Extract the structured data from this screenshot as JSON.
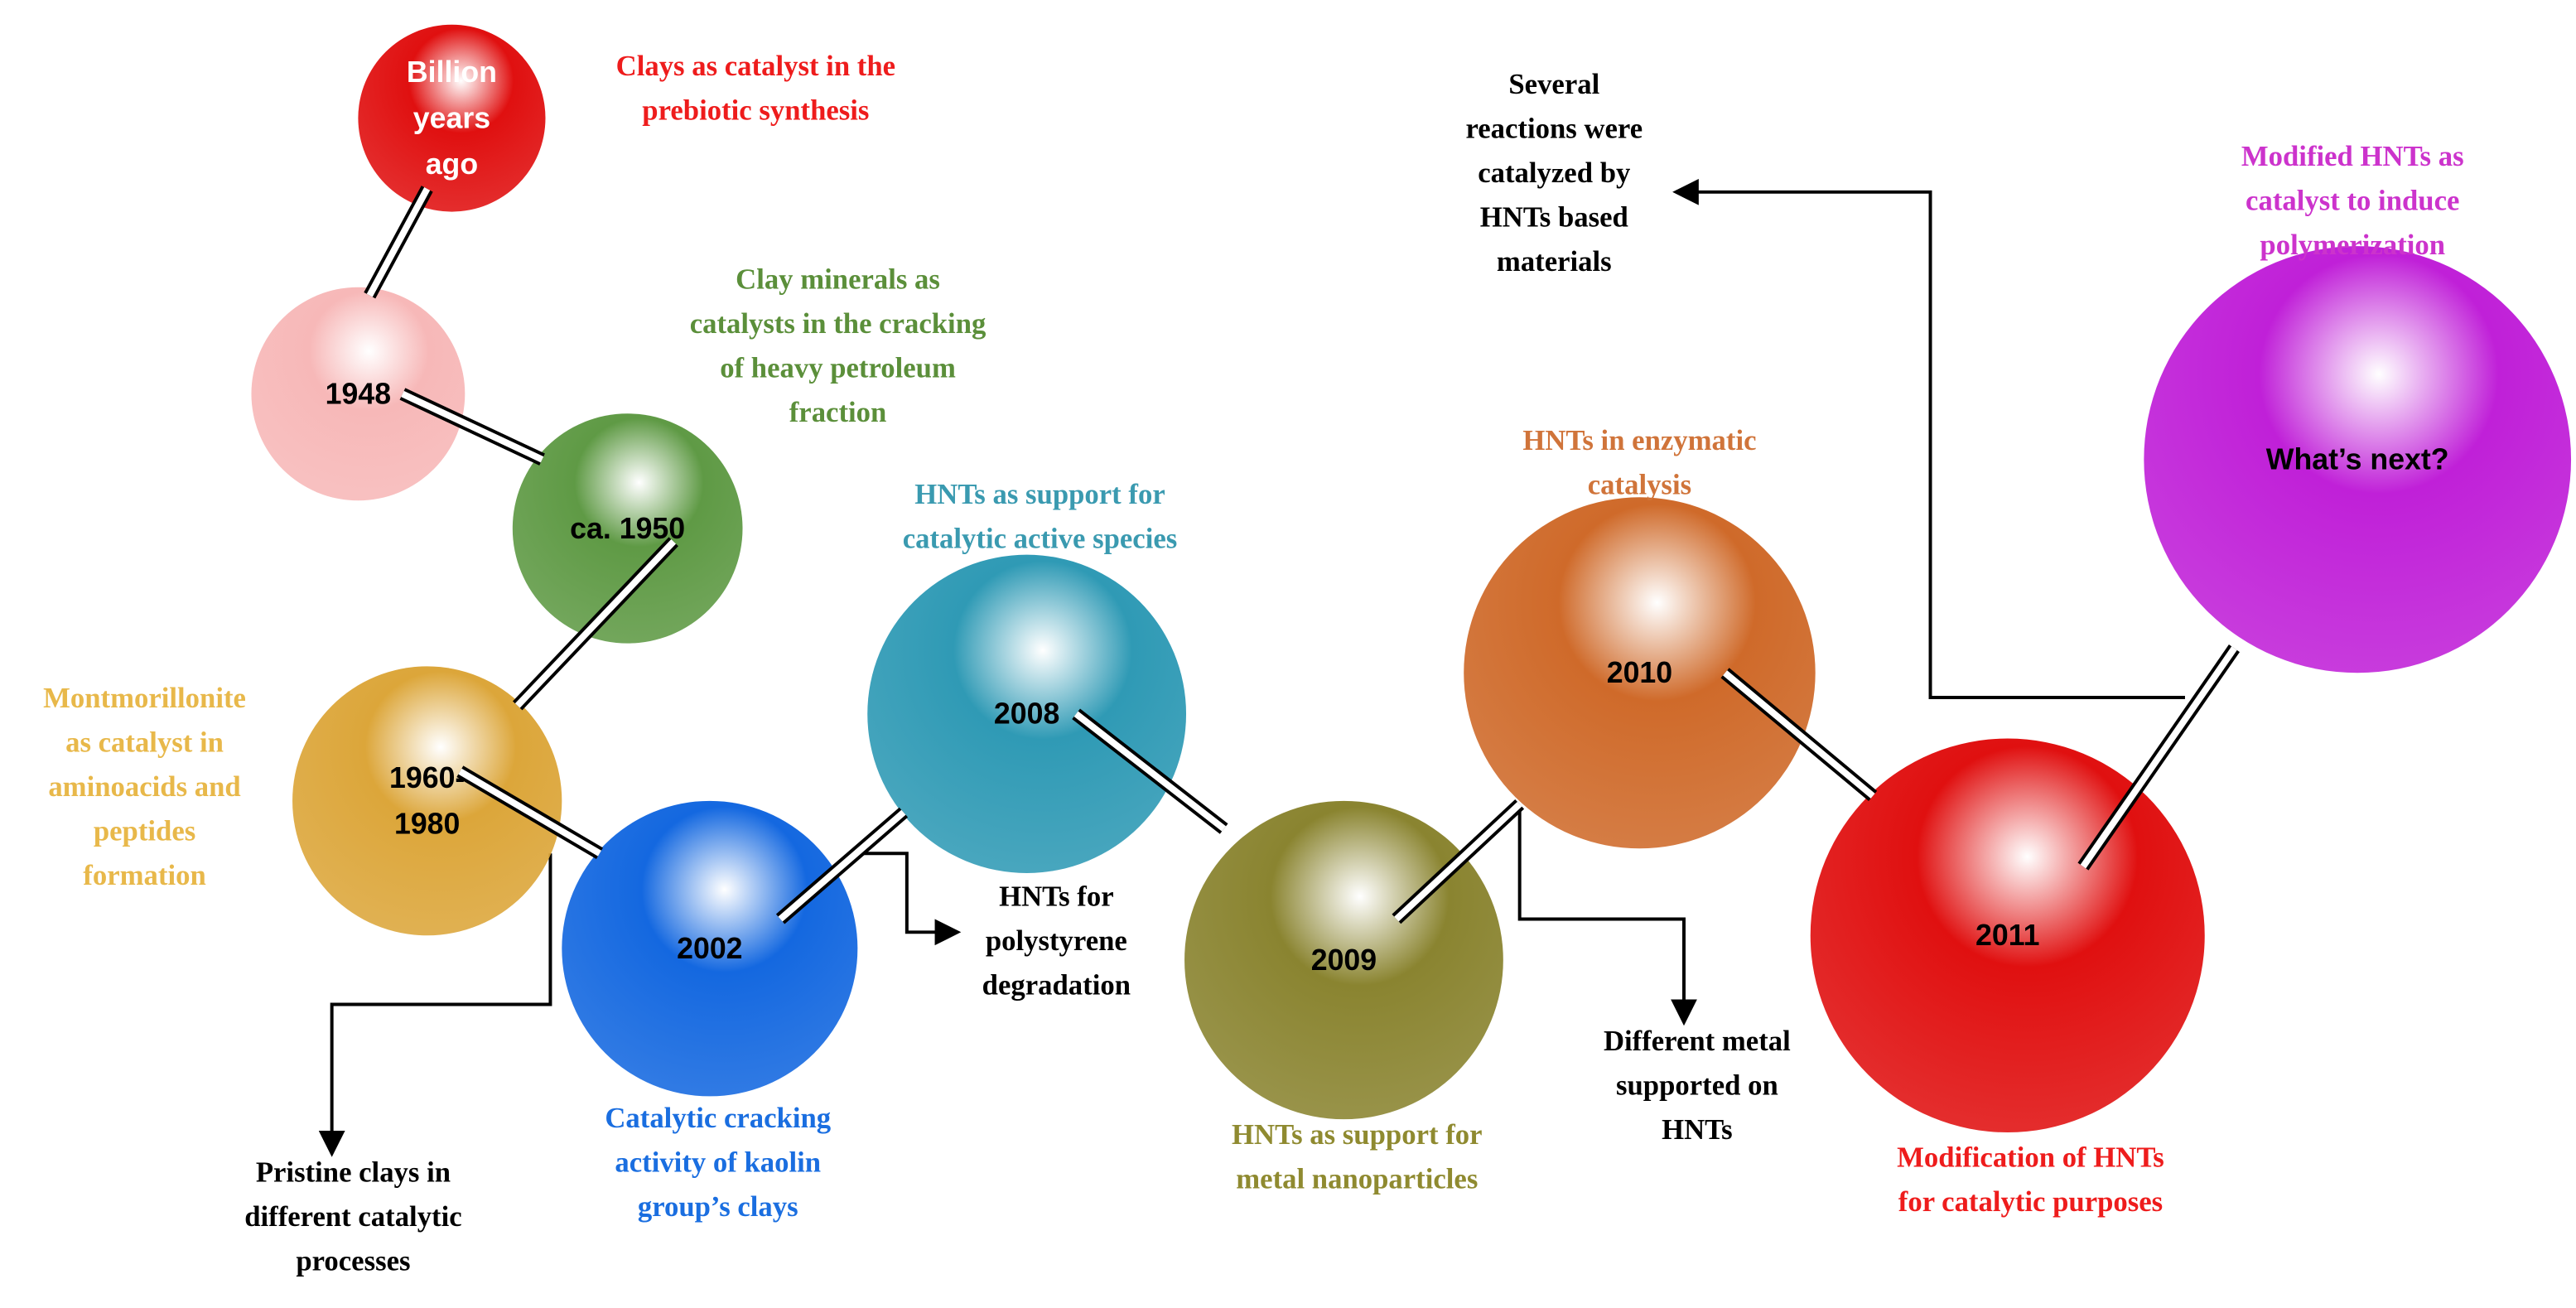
{
  "nodes": [
    {
      "label": [
        "Billion",
        "years",
        "ago"
      ],
      "color": "#e01010",
      "caption": [
        "Clays as catalyst in the",
        "prebiotic synthesis"
      ],
      "caption_color": "#ee1c1c"
    },
    {
      "label": [
        "1948"
      ],
      "color": "#f7b8b8",
      "caption": [],
      "caption_color": "#000000"
    },
    {
      "label": [
        "ca. 1950"
      ],
      "color": "#5f9a45",
      "caption": [
        "Clay minerals as",
        "catalysts in the cracking",
        "of heavy petroleum",
        "fraction"
      ],
      "caption_color": "#5b8f3a"
    },
    {
      "label": [
        "1960-",
        "1980"
      ],
      "color": "#dca63a",
      "caption": [
        "Montmorillonite",
        "as catalyst in",
        "aminoacids and",
        "peptides",
        "formation"
      ],
      "caption_color": "#e8b84a"
    },
    {
      "label": [
        "2002"
      ],
      "color": "#1468e0",
      "caption": [
        "Catalytic cracking",
        "activity of kaolin",
        "group’s clays"
      ],
      "caption_color": "#1a6ee0"
    },
    {
      "label": [
        "2008"
      ],
      "color": "#2f9ab5",
      "caption": [
        "HNTs as support for",
        "catalytic active species"
      ],
      "caption_color": "#3a9ab0"
    },
    {
      "label": [
        "2009"
      ],
      "color": "#8a8430",
      "caption": [
        "HNTs as support for",
        "metal nanoparticles"
      ],
      "caption_color": "#8f8a30"
    },
    {
      "label": [
        "2010"
      ],
      "color": "#cf6a2a",
      "caption": [
        "HNTs in enzymatic",
        "catalysis"
      ],
      "caption_color": "#d0743a"
    },
    {
      "label": [
        "2011"
      ],
      "color": "#e01010",
      "caption": [
        "Modification of HNTs",
        "for catalytic purposes"
      ],
      "caption_color": "#ee1c1c"
    },
    {
      "label": [
        "What’s next?"
      ],
      "color": "#c020d8",
      "caption": [
        "Modified HNTs as",
        "catalyst to induce",
        "polymerization"
      ],
      "caption_color": "#cc33cc"
    }
  ],
  "notes": [
    {
      "text": [
        "Pristine clays in",
        "different catalytic",
        "processes"
      ]
    },
    {
      "text": [
        "HNTs for",
        "polystyrene",
        "degradation"
      ]
    },
    {
      "text": [
        "Different metal",
        "supported on",
        "HNTs"
      ]
    },
    {
      "text": [
        "Several",
        "reactions were",
        "catalyzed by",
        "HNTs based",
        "materials"
      ]
    }
  ]
}
